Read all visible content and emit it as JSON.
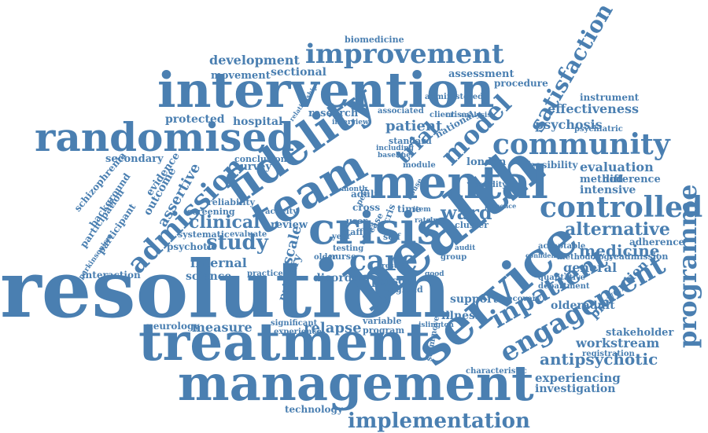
{
  "cloud": {
    "color": "#4a7fb1",
    "words": [
      {
        "text": "resolution",
        "size": 100
      },
      {
        "text": "health",
        "size": 80
      },
      {
        "text": "treatment",
        "size": 66
      },
      {
        "text": "management",
        "size": 62
      },
      {
        "text": "intervention",
        "size": 62
      },
      {
        "text": "service",
        "size": 62
      },
      {
        "text": "mental",
        "size": 58
      },
      {
        "text": "crisis",
        "size": 56
      },
      {
        "text": "team",
        "size": 56
      },
      {
        "text": "fidelity",
        "size": 56
      },
      {
        "text": "randomised",
        "size": 50
      },
      {
        "text": "community",
        "size": 36
      },
      {
        "text": "care",
        "size": 36
      },
      {
        "text": "controlled",
        "size": 36
      },
      {
        "text": "engagement",
        "size": 34
      },
      {
        "text": "improvement",
        "size": 34
      },
      {
        "text": "admission",
        "size": 34
      },
      {
        "text": "programme",
        "size": 32
      },
      {
        "text": "inpatient",
        "size": 32
      },
      {
        "text": "model",
        "size": 32
      },
      {
        "text": "satisfaction",
        "size": 28
      },
      {
        "text": "implementation",
        "size": 26
      },
      {
        "text": "study",
        "size": 26
      },
      {
        "text": "trial",
        "size": 26
      },
      {
        "text": "ward",
        "size": 24
      },
      {
        "text": "alternative",
        "size": 22
      },
      {
        "text": "clinical",
        "size": 22
      },
      {
        "text": "antipsychotic",
        "size": 20
      },
      {
        "text": "medicine",
        "size": 20
      },
      {
        "text": "relapse",
        "size": 18
      },
      {
        "text": "assertive",
        "size": 18
      },
      {
        "text": "scale",
        "size": 18
      },
      {
        "text": "patient",
        "size": 18
      },
      {
        "text": "measure",
        "size": 16
      },
      {
        "text": "development",
        "size": 16
      },
      {
        "text": "evaluation",
        "size": 16
      },
      {
        "text": "workstream",
        "size": 16
      },
      {
        "text": "general",
        "size": 16
      },
      {
        "text": "effectiveness",
        "size": 16
      },
      {
        "text": "internal",
        "size": 16
      },
      {
        "text": "prevention",
        "size": 16
      },
      {
        "text": "psychosis",
        "size": 16
      },
      {
        "text": "experiencing",
        "size": 15
      },
      {
        "text": "sectional",
        "size": 14
      },
      {
        "text": "outcome",
        "size": 14
      },
      {
        "text": "person",
        "size": 14
      },
      {
        "text": "science",
        "size": 14
      },
      {
        "text": "support",
        "size": 14
      },
      {
        "text": "illness",
        "size": 14
      },
      {
        "text": "disorder",
        "size": 14
      },
      {
        "text": "primary",
        "size": 14
      },
      {
        "text": "intensive",
        "size": 14
      },
      {
        "text": "olderadult",
        "size": 14
      },
      {
        "text": "investigation",
        "size": 14
      },
      {
        "text": "hospital",
        "size": 14
      },
      {
        "text": "protected",
        "size": 14
      },
      {
        "text": "secondary",
        "size": 13
      },
      {
        "text": "evidence",
        "size": 13
      },
      {
        "text": "assessment",
        "size": 13
      },
      {
        "text": "movement",
        "size": 13
      },
      {
        "text": "research",
        "size": 13
      },
      {
        "text": "survey",
        "size": 13
      },
      {
        "text": "london",
        "size": 13
      },
      {
        "text": "review",
        "size": 13
      },
      {
        "text": "difference",
        "size": 13
      },
      {
        "text": "method",
        "size": 13
      },
      {
        "text": "stakeholder",
        "size": 13
      },
      {
        "text": "schizophrenia",
        "size": 12
      },
      {
        "text": "participation",
        "size": 12
      },
      {
        "text": "participant",
        "size": 12
      },
      {
        "text": "background",
        "size": 12
      },
      {
        "text": "psychotic",
        "size": 12
      },
      {
        "text": "interaction",
        "size": 12
      },
      {
        "text": "neurology",
        "size": 12
      },
      {
        "text": "technology",
        "size": 12
      },
      {
        "text": "procedure",
        "size": 12
      },
      {
        "text": "instrument",
        "size": 12
      },
      {
        "text": "feasibility",
        "size": 12
      },
      {
        "text": "adherence",
        "size": 12
      },
      {
        "text": "readmission",
        "size": 11
      },
      {
        "text": "biomedicine",
        "size": 11
      },
      {
        "text": "conclusion",
        "size": 11
      },
      {
        "text": "reliability",
        "size": 11
      },
      {
        "text": "screening",
        "size": 11
      },
      {
        "text": "systematic",
        "size": 11
      },
      {
        "text": "cross",
        "size": 12
      },
      {
        "text": "adult",
        "size": 12
      },
      {
        "text": "time",
        "size": 12
      },
      {
        "text": "nurse",
        "size": 11
      },
      {
        "text": "england",
        "size": 11
      },
      {
        "text": "program",
        "size": 11
      },
      {
        "text": "variable",
        "size": 11
      },
      {
        "text": "significant",
        "size": 10
      },
      {
        "text": "experience",
        "size": 10
      },
      {
        "text": "standard",
        "size": 11
      },
      {
        "text": "national",
        "size": 12
      },
      {
        "text": "psychiatric",
        "size": 10
      },
      {
        "text": "cluster",
        "size": 11
      },
      {
        "text": "qualitative",
        "size": 10
      },
      {
        "text": "registration",
        "size": 10
      },
      {
        "text": "characteristic",
        "size": 10
      },
      {
        "text": "acceptable",
        "size": 10
      },
      {
        "text": "methodology",
        "size": 10
      },
      {
        "text": "department",
        "size": 10
      },
      {
        "text": "recovery",
        "size": 10
      },
      {
        "text": "islington",
        "size": 9
      },
      {
        "text": "scammove",
        "size": 10
      },
      {
        "text": "client",
        "size": 10
      },
      {
        "text": "crises",
        "size": 10
      },
      {
        "text": "analysis",
        "size": 9
      },
      {
        "text": "module",
        "size": 10
      },
      {
        "text": "validity",
        "size": 10
      },
      {
        "text": "administered",
        "size": 10
      },
      {
        "text": "associated",
        "size": 10
      },
      {
        "text": "interview",
        "size": 9
      },
      {
        "text": "including",
        "size": 9
      },
      {
        "text": "baseline",
        "size": 9
      },
      {
        "text": "parkinsonism",
        "size": 9
      },
      {
        "text": "evaluate",
        "size": 10
      },
      {
        "text": "practice",
        "size": 10
      },
      {
        "text": "activity",
        "size": 10
      },
      {
        "text": "testing",
        "size": 10
      },
      {
        "text": "older",
        "size": 10
      },
      {
        "text": "staff",
        "size": 11
      },
      {
        "text": "user",
        "size": 11
      },
      {
        "text": "year",
        "size": 10
      },
      {
        "text": "self",
        "size": 11
      },
      {
        "text": "good",
        "size": 9
      },
      {
        "text": "result",
        "size": 9
      },
      {
        "text": "month",
        "size": 9
      },
      {
        "text": "group",
        "size": 10
      },
      {
        "text": "audit",
        "size": 9
      },
      {
        "text": "item",
        "size": 9
      },
      {
        "text": "rate",
        "size": 9
      },
      {
        "text": "drug",
        "size": 9
      },
      {
        "text": "peer",
        "size": 10
      },
      {
        "text": "case",
        "size": 11
      },
      {
        "text": "cris",
        "size": 12
      },
      {
        "text": "effect",
        "size": 10
      },
      {
        "text": "house",
        "size": 9
      },
      {
        "text": "relationship",
        "size": 8
      },
      {
        "text": "presence",
        "size": 8
      },
      {
        "text": "confidence",
        "size": 8
      }
    ]
  }
}
